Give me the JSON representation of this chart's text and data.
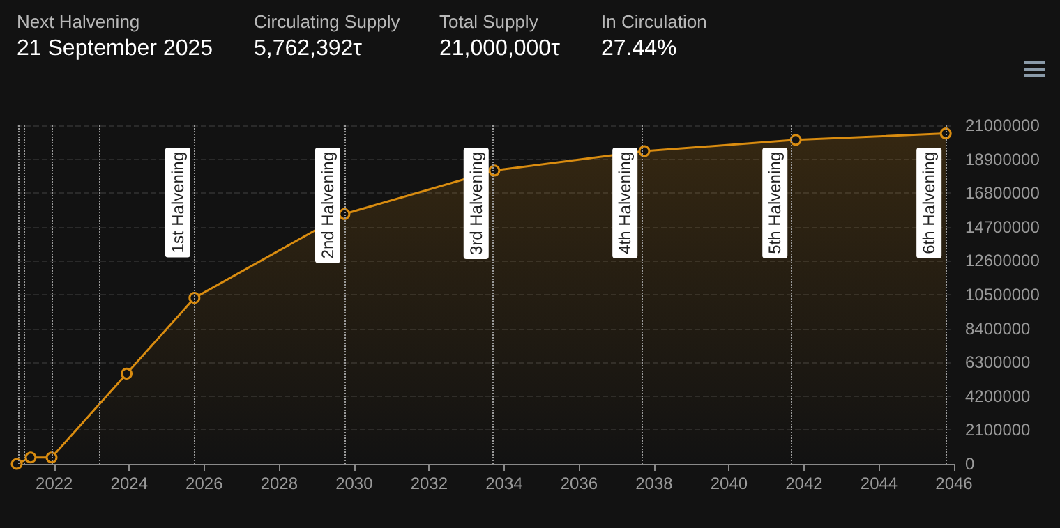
{
  "chart_data": {
    "type": "area",
    "annotations": [
      "Next Halvening",
      "21 September 2025",
      "Circulating Supply",
      "5,762,392τ",
      "Total Supply",
      "21,000,000τ",
      "In Circulation",
      "27.44%"
    ],
    "x": [
      2021.0,
      2021.37,
      2021.93,
      2023.93,
      2025.74,
      2029.74,
      2033.74,
      2037.74,
      2041.78,
      2045.78
    ],
    "series": [
      {
        "color": "#d98c10",
        "values": [
          0,
          400000,
          400000,
          5600000,
          10300000,
          15500000,
          18200000,
          19400000,
          20100000,
          20500000
        ]
      }
    ],
    "xlim": [
      2021,
      2046
    ],
    "xticks": [
      2022,
      2024,
      2026,
      2028,
      2030,
      2032,
      2034,
      2036,
      2038,
      2040,
      2042,
      2044,
      2046
    ],
    "ylim": [
      0,
      21000000
    ],
    "yticks": [
      0,
      2100000,
      4200000,
      6300000,
      8400000,
      10500000,
      12600000,
      14700000,
      16800000,
      18900000,
      21000000
    ],
    "grid": "y",
    "marker": "circle",
    "ref_lines": [
      {
        "axis": "x",
        "value": 2021.04,
        "label": null,
        "color": "#9a9a9a",
        "line_style": "dotted"
      },
      {
        "axis": "x",
        "value": 2021.19,
        "label": null,
        "color": "#9a9a9a",
        "line_style": "dotted"
      },
      {
        "axis": "x",
        "value": 2021.93,
        "label": null,
        "color": "#9a9a9a",
        "line_style": "dotted"
      },
      {
        "axis": "x",
        "value": 2023.22,
        "label": null,
        "color": "#9a9a9a",
        "line_style": "dotted"
      },
      {
        "axis": "x",
        "value": 2025.74,
        "label": "1st Halvening",
        "color": "#9a9a9a",
        "line_style": "dotted"
      },
      {
        "axis": "x",
        "value": 2029.74,
        "label": "2nd Halvening",
        "color": "#9a9a9a",
        "line_style": "dotted"
      },
      {
        "axis": "x",
        "value": 2033.7,
        "label": "3rd Halvening",
        "color": "#9a9a9a",
        "line_style": "dotted"
      },
      {
        "axis": "x",
        "value": 2037.67,
        "label": "4th Halvening",
        "color": "#9a9a9a",
        "line_style": "dotted"
      },
      {
        "axis": "x",
        "value": 2041.67,
        "label": "5th Halvening",
        "color": "#9a9a9a",
        "line_style": "dotted"
      },
      {
        "axis": "x",
        "value": 2045.78,
        "label": "6th Halvening",
        "color": "#9a9a9a",
        "line_style": "dotted"
      }
    ]
  }
}
